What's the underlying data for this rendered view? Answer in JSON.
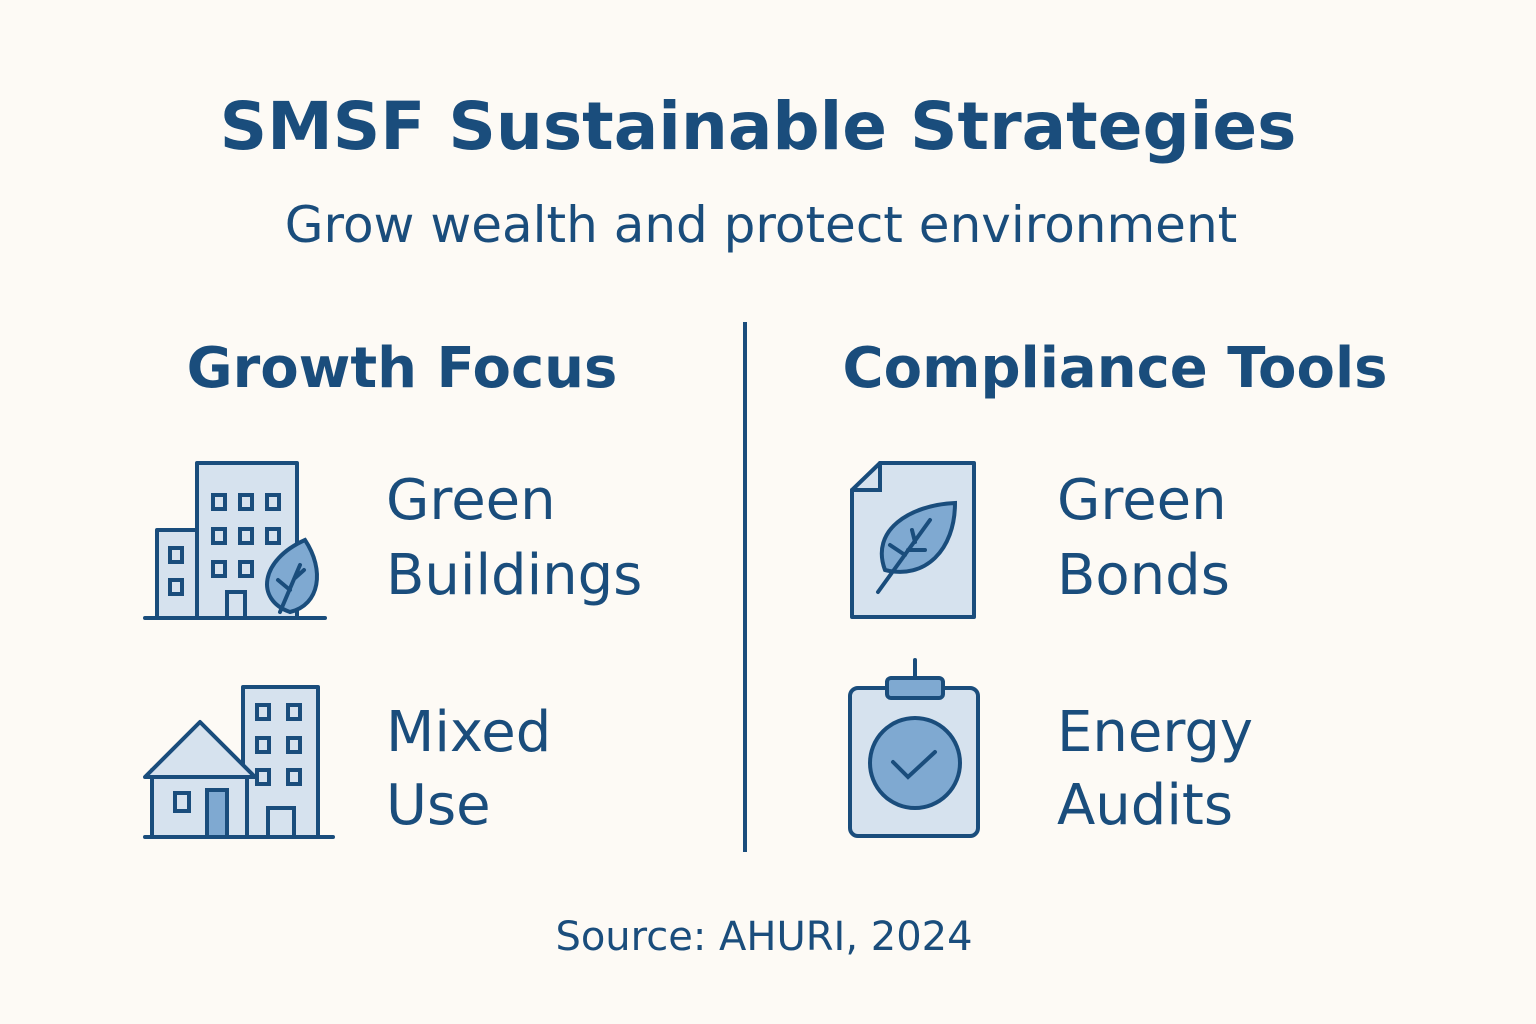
{
  "header": {
    "title": "SMSF Sustainable Strategies",
    "subtitle": "Grow wealth and protect environment"
  },
  "columns": [
    {
      "heading": "Growth Focus",
      "items": [
        {
          "lines": [
            "Green",
            "Buildings"
          ]
        },
        {
          "lines": [
            "Mixed",
            "Use"
          ]
        }
      ]
    },
    {
      "heading": "Compliance Tools",
      "items": [
        {
          "lines": [
            "Green",
            "Bonds"
          ]
        },
        {
          "lines": [
            "Energy",
            "Audits"
          ]
        }
      ]
    }
  ],
  "source": "Source: AHURI, 2024"
}
